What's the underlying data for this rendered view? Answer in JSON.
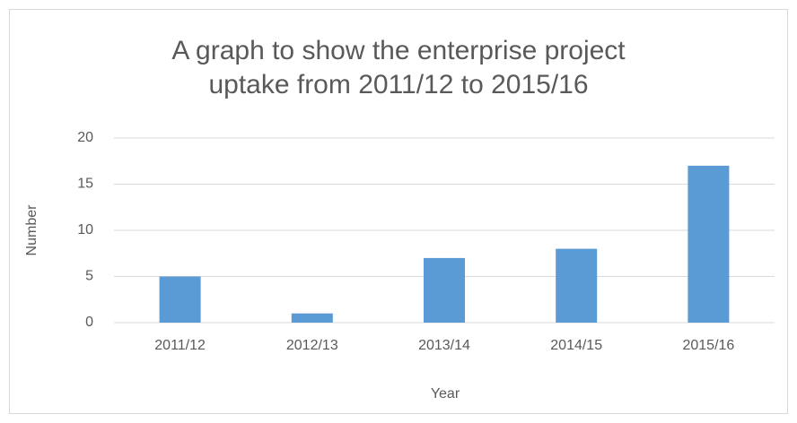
{
  "chart_data": {
    "type": "bar",
    "title": "A graph to show the enterprise project uptake from 2011/12 to 2015/16",
    "x_label": "Year",
    "y_label": "Number",
    "categories": [
      "2011/12",
      "2012/13",
      "2013/14",
      "2014/15",
      "2015/16"
    ],
    "values": [
      5,
      1,
      7,
      8,
      17
    ],
    "color": "#5b9bd5",
    "ylim": [
      0,
      20
    ],
    "yticks": [
      0,
      5,
      10,
      15,
      20
    ],
    "grid": true
  }
}
